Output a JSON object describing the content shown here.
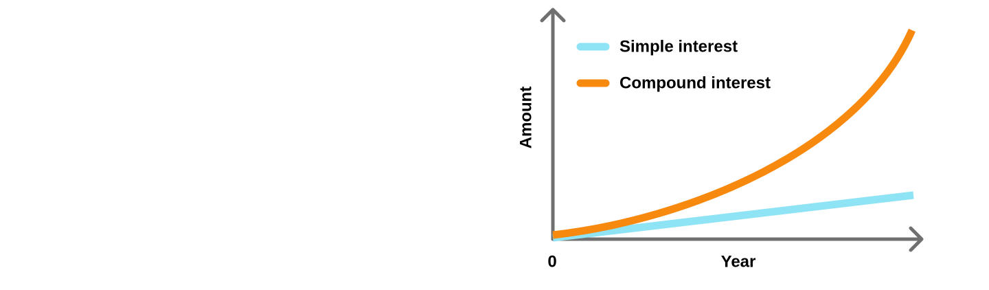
{
  "axes": {
    "y_label": "Amount",
    "x_label": "Year",
    "origin_label": "0",
    "color": "#707070"
  },
  "legend": [
    {
      "label": "Simple interest",
      "color": "#8ee3f5"
    },
    {
      "label": "Compound interest",
      "color": "#f7890f"
    }
  ]
}
